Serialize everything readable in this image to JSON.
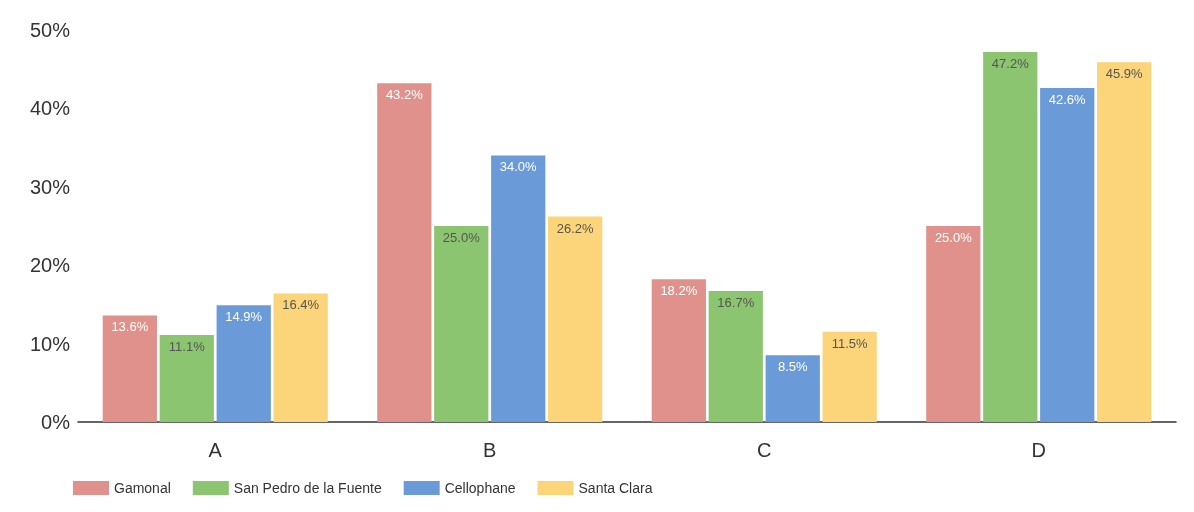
{
  "chart_data": {
    "type": "bar",
    "categories": [
      "A",
      "B",
      "C",
      "D"
    ],
    "series": [
      {
        "name": "Gamonal",
        "color": "#e0918b",
        "values": [
          13.6,
          43.2,
          18.2,
          25.0
        ],
        "value_labels": [
          "13.6%",
          "43.2%",
          "18.2%",
          "25.0%"
        ]
      },
      {
        "name": "San Pedro de la Fuente",
        "color": "#8cc56f",
        "values": [
          11.1,
          25.0,
          16.7,
          47.2
        ],
        "value_labels": [
          "11.1%",
          "25.0%",
          "16.7%",
          "47.2%"
        ]
      },
      {
        "name": "Cellophane",
        "color": "#6a9bd8",
        "values": [
          14.9,
          34.0,
          8.5,
          42.6
        ],
        "value_labels": [
          "14.9%",
          "34.0%",
          "8.5%",
          "42.6%"
        ]
      },
      {
        "name": "Santa Clara",
        "color": "#fcd57a",
        "values": [
          16.4,
          26.2,
          11.5,
          45.9
        ],
        "value_labels": [
          "16.4%",
          "26.2%",
          "11.5%",
          "45.9%"
        ]
      }
    ],
    "ylim": [
      0,
      50
    ],
    "yticks": [
      {
        "value": 0,
        "label": "0%"
      },
      {
        "value": 10,
        "label": "10%"
      },
      {
        "value": 20,
        "label": "20%"
      },
      {
        "value": 30,
        "label": "30%"
      },
      {
        "value": 40,
        "label": "40%"
      },
      {
        "value": 50,
        "label": "50%"
      }
    ],
    "grid": false,
    "legend": "bottom left"
  }
}
